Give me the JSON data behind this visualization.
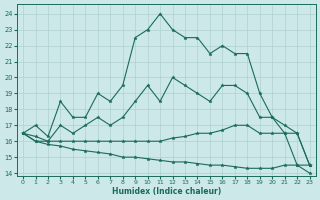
{
  "xlabel": "Humidex (Indice chaleur)",
  "bg_color": "#cce8e8",
  "grid_color": "#b0d0d0",
  "line_color": "#1a6b5a",
  "xlim": [
    -0.5,
    23.5
  ],
  "ylim": [
    13.8,
    24.6
  ],
  "yticks": [
    14,
    15,
    16,
    17,
    18,
    19,
    20,
    21,
    22,
    23,
    24
  ],
  "xticks": [
    0,
    1,
    2,
    3,
    4,
    5,
    6,
    7,
    8,
    9,
    10,
    11,
    12,
    13,
    14,
    15,
    16,
    17,
    18,
    19,
    20,
    21,
    22,
    23
  ],
  "series": [
    {
      "x": [
        0,
        1,
        2,
        3,
        4,
        5,
        6,
        7,
        8,
        9,
        10,
        11,
        12,
        13,
        14,
        15,
        16,
        17,
        18,
        19,
        20,
        21,
        22,
        23
      ],
      "y": [
        16.5,
        17.0,
        16.3,
        18.5,
        17.5,
        17.5,
        19.0,
        18.5,
        19.5,
        22.5,
        23.0,
        24.0,
        23.0,
        22.5,
        22.5,
        21.5,
        22.0,
        21.5,
        21.5,
        19.0,
        17.5,
        17.0,
        16.5,
        14.5
      ]
    },
    {
      "x": [
        0,
        1,
        2,
        3,
        4,
        5,
        6,
        7,
        8,
        9,
        10,
        11,
        12,
        13,
        14,
        15,
        16,
        17,
        18,
        19,
        20,
        21,
        22,
        23
      ],
      "y": [
        16.5,
        16.3,
        16.0,
        17.0,
        16.5,
        17.0,
        17.5,
        17.0,
        17.5,
        18.5,
        19.5,
        18.5,
        20.0,
        19.5,
        19.0,
        18.5,
        19.5,
        19.5,
        19.0,
        17.5,
        17.5,
        16.5,
        16.5,
        14.5
      ]
    },
    {
      "x": [
        0,
        1,
        2,
        3,
        4,
        5,
        6,
        7,
        8,
        9,
        10,
        11,
        12,
        13,
        14,
        15,
        16,
        17,
        18,
        19,
        20,
        21,
        22,
        23
      ],
      "y": [
        16.5,
        16.0,
        16.0,
        16.0,
        16.0,
        16.0,
        16.0,
        16.0,
        16.0,
        16.0,
        16.0,
        16.0,
        16.2,
        16.3,
        16.5,
        16.5,
        16.7,
        17.0,
        17.0,
        16.5,
        16.5,
        16.5,
        14.5,
        14.5
      ]
    },
    {
      "x": [
        0,
        1,
        2,
        3,
        4,
        5,
        6,
        7,
        8,
        9,
        10,
        11,
        12,
        13,
        14,
        15,
        16,
        17,
        18,
        19,
        20,
        21,
        22,
        23
      ],
      "y": [
        16.5,
        16.0,
        15.8,
        15.7,
        15.5,
        15.4,
        15.3,
        15.2,
        15.0,
        15.0,
        14.9,
        14.8,
        14.7,
        14.7,
        14.6,
        14.5,
        14.5,
        14.4,
        14.3,
        14.3,
        14.3,
        14.5,
        14.5,
        14.0
      ]
    }
  ]
}
